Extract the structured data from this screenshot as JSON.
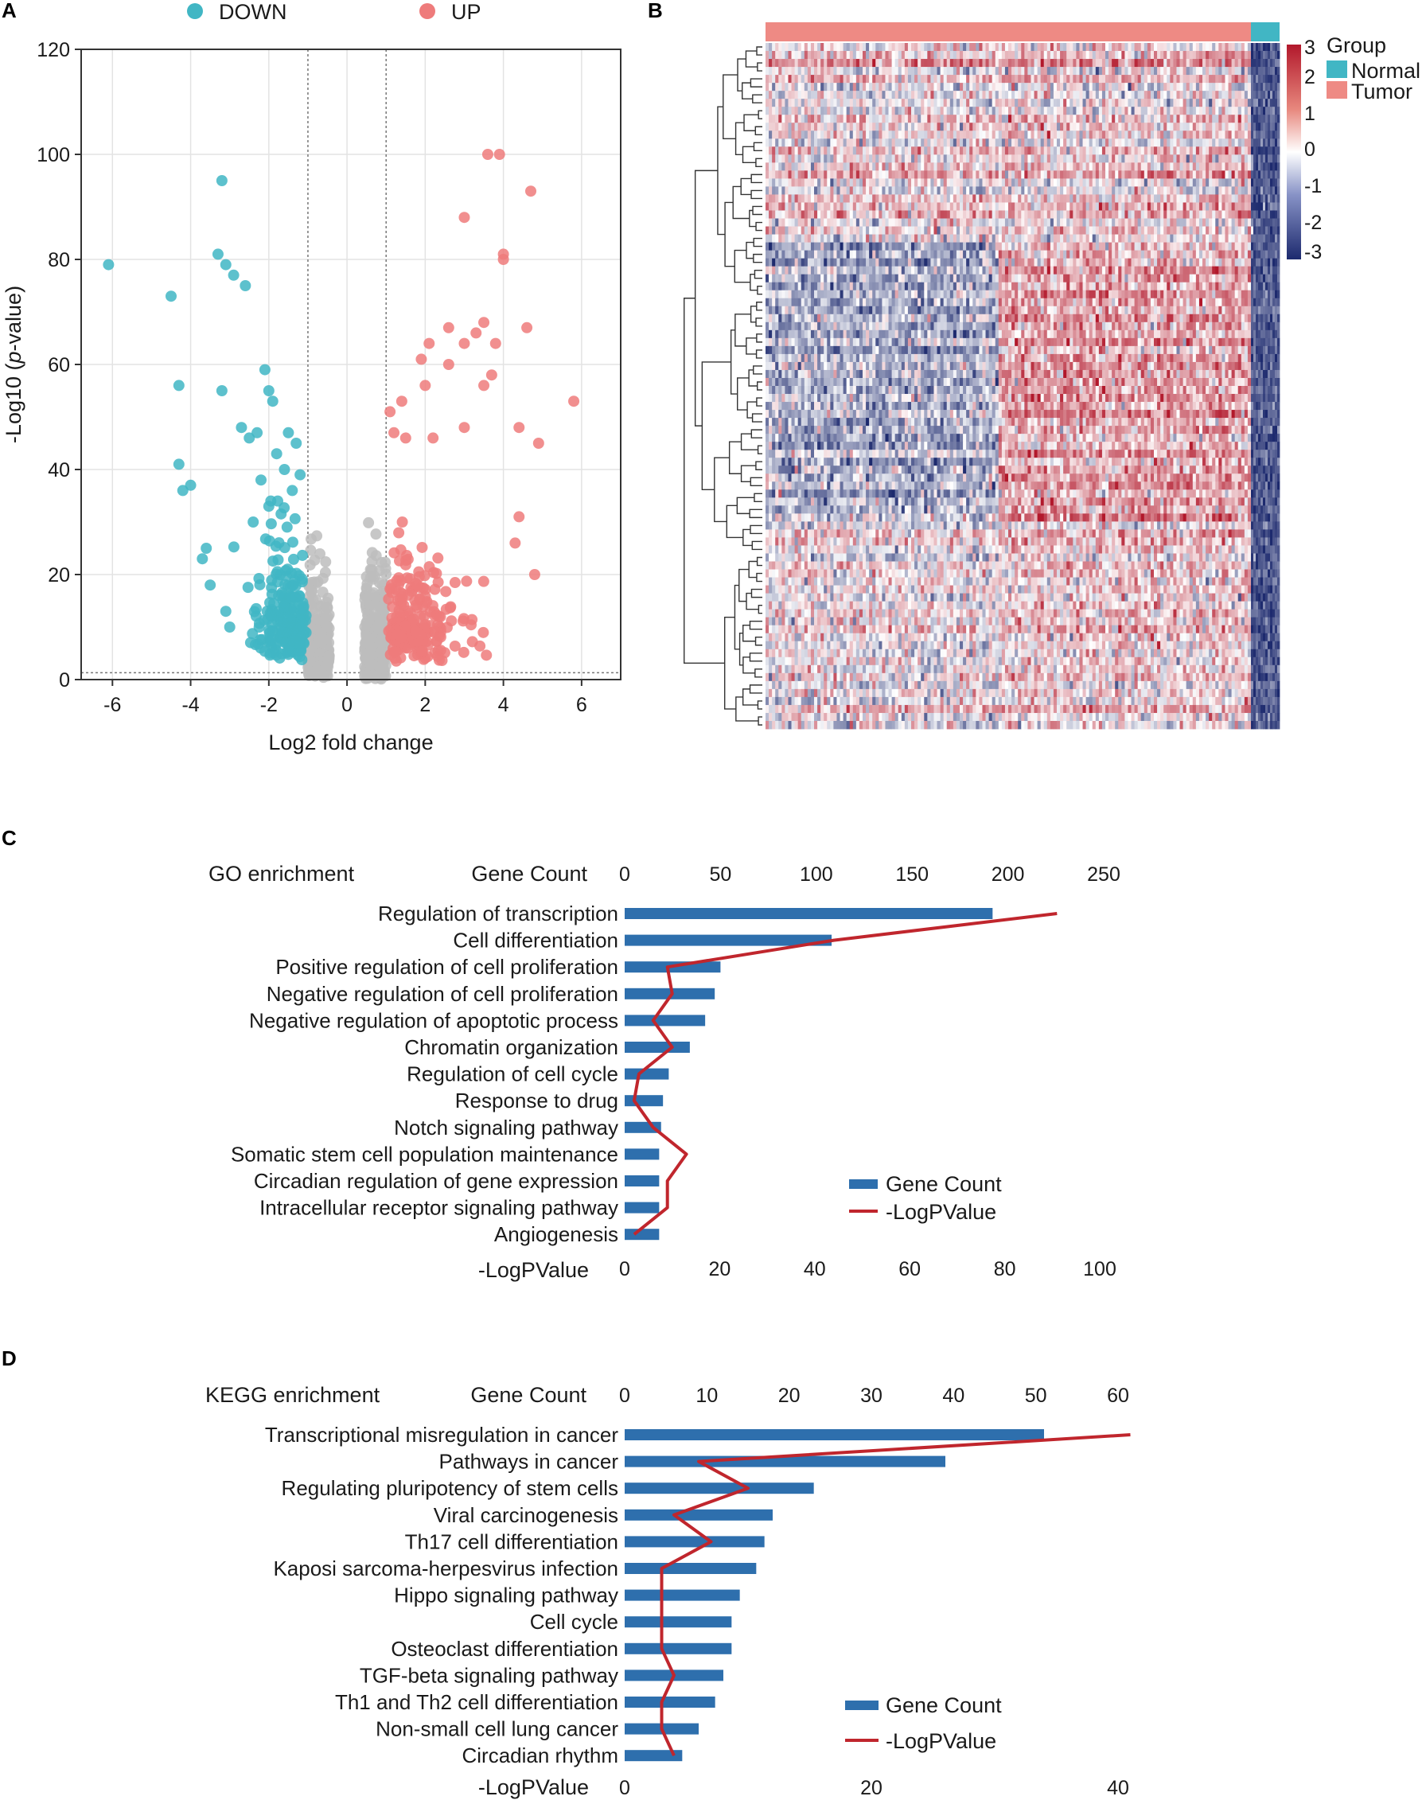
{
  "panels": {
    "a": "A",
    "b": "B",
    "c": "C",
    "d": "D"
  },
  "colors": {
    "down": "#41b6c4",
    "up": "#ee7b7b",
    "neutral": "#bdbdbd",
    "bar": "#2e6fad",
    "line": "#c0262d",
    "heat_low": "#1d2a6e",
    "heat_mid": "#ffffff",
    "heat_high": "#b2182b",
    "group_normal": "#41b6c4",
    "group_tumor": "#ee8a84"
  },
  "chart_data": [
    {
      "id": "volcano",
      "type": "scatter",
      "title": "",
      "xlabel": "Log2 fold change",
      "ylabel_prefix": "-Log10 (",
      "ylabel_italic": "p",
      "ylabel_suffix": "-value)",
      "xlim": [
        -6.8,
        7.0
      ],
      "ylim": [
        0,
        120
      ],
      "xticks": [
        -6,
        -4,
        -2,
        0,
        2,
        4,
        6
      ],
      "yticks": [
        0,
        20,
        40,
        60,
        80,
        100,
        120
      ],
      "thresholds": {
        "fc": [
          -1,
          1
        ],
        "p": 1.3
      },
      "legend": [
        {
          "name": "DOWN",
          "color_key": "down"
        },
        {
          "name": "UP",
          "color_key": "up"
        }
      ],
      "labeled_points": {
        "DOWN": [
          [
            -6.1,
            79
          ],
          [
            -4.5,
            73
          ],
          [
            -3.2,
            95
          ],
          [
            -3.3,
            81
          ],
          [
            -3.1,
            79
          ],
          [
            -2.9,
            77
          ],
          [
            -2.6,
            75
          ],
          [
            -4.3,
            56
          ],
          [
            -3.2,
            55
          ],
          [
            -2.1,
            59
          ],
          [
            -2.0,
            55
          ],
          [
            -1.9,
            53
          ],
          [
            -4.3,
            41
          ],
          [
            -4.0,
            37
          ],
          [
            -4.2,
            36
          ],
          [
            -3.6,
            25
          ],
          [
            -3.7,
            23
          ],
          [
            -3.5,
            18
          ],
          [
            -3.1,
            13
          ],
          [
            -3.0,
            10
          ],
          [
            -2.7,
            48
          ],
          [
            -2.5,
            46
          ],
          [
            -2.3,
            47
          ],
          [
            -1.8,
            43
          ],
          [
            -1.5,
            47
          ],
          [
            -1.3,
            45
          ],
          [
            -2.2,
            38
          ],
          [
            -1.6,
            40
          ],
          [
            -1.2,
            39
          ],
          [
            -2.4,
            30
          ],
          [
            -2.0,
            33
          ],
          [
            -1.4,
            36
          ]
        ],
        "UP": [
          [
            3.6,
            100
          ],
          [
            3.9,
            100
          ],
          [
            4.7,
            93
          ],
          [
            3.0,
            88
          ],
          [
            4.0,
            81
          ],
          [
            4.0,
            80
          ],
          [
            3.5,
            68
          ],
          [
            3.3,
            66
          ],
          [
            2.6,
            67
          ],
          [
            3.0,
            64
          ],
          [
            3.8,
            64
          ],
          [
            4.6,
            67
          ],
          [
            2.1,
            64
          ],
          [
            1.9,
            61
          ],
          [
            2.6,
            60
          ],
          [
            5.8,
            53
          ],
          [
            4.4,
            48
          ],
          [
            4.9,
            45
          ],
          [
            3.5,
            56
          ],
          [
            2.0,
            56
          ],
          [
            1.4,
            53
          ],
          [
            1.1,
            51
          ],
          [
            2.2,
            46
          ],
          [
            1.2,
            47
          ],
          [
            1.5,
            46
          ],
          [
            3.0,
            48
          ],
          [
            3.7,
            58
          ],
          [
            4.4,
            31
          ],
          [
            4.3,
            26
          ],
          [
            4.8,
            20
          ]
        ]
      }
    },
    {
      "id": "heatmap",
      "type": "heatmap",
      "colorbar_ticks": [
        "3",
        "2",
        "1",
        "0",
        "-1",
        "-2",
        "-3"
      ],
      "legend_title": "Group",
      "groups": [
        "Normal",
        "Tumor"
      ],
      "group_color_keys": [
        "group_normal",
        "group_tumor"
      ]
    },
    {
      "id": "go",
      "type": "bar",
      "title": "GO enrichment",
      "top_axis_label": "Gene Count",
      "bottom_axis_label": "-LogPValue",
      "top_ticks": [
        0,
        50,
        100,
        150,
        200,
        250
      ],
      "bottom_ticks": [
        0,
        20,
        40,
        60,
        80,
        100
      ],
      "categories": [
        "Regulation of transcription",
        "Cell differentiation",
        "Positive regulation of cell proliferation",
        "Negative regulation of cell proliferation",
        "Negative regulation of apoptotic process",
        "Chromatin organization",
        "Regulation of cell cycle",
        "Response to drug",
        "Notch signaling pathway",
        "Somatic stem cell population maintenance",
        "Circadian regulation of gene expression",
        "Intracellular receptor signaling pathway",
        "Angiogenesis"
      ],
      "series": [
        {
          "name": "Gene Count",
          "kind": "bar",
          "values": [
            192,
            108,
            50,
            47,
            42,
            34,
            23,
            20,
            19,
            18,
            18,
            18,
            18
          ]
        },
        {
          "name": "-LogPValue",
          "kind": "line",
          "values": [
            91,
            44,
            9,
            10,
            6,
            10,
            3,
            2,
            6,
            13,
            9,
            9,
            2
          ]
        }
      ]
    },
    {
      "id": "kegg",
      "type": "bar",
      "title": "KEGG enrichment",
      "top_axis_label": "Gene Count",
      "bottom_axis_label": "-LogPValue",
      "top_ticks": [
        0,
        10,
        20,
        30,
        40,
        50,
        60
      ],
      "bottom_ticks": [
        0,
        20,
        40
      ],
      "categories": [
        "Transcriptional misregulation in cancer",
        "Pathways in cancer",
        "Regulating pluripotency of stem cells",
        "Viral carcinogenesis",
        "Th17 cell differentiation",
        "Kaposi sarcoma-herpesvirus infection",
        "Hippo signaling pathway",
        "Cell cycle",
        "Osteoclast differentiation",
        "TGF-beta signaling pathway",
        "Th1 and Th2 cell differentiation",
        "Non-small cell lung cancer",
        "Circadian rhythm"
      ],
      "series": [
        {
          "name": "Gene Count",
          "kind": "bar",
          "values": [
            51,
            39,
            23,
            18,
            17,
            16,
            14,
            13,
            13,
            12,
            11,
            9,
            7
          ]
        },
        {
          "name": "-LogPValue",
          "kind": "line",
          "values": [
            41,
            6,
            10,
            4,
            7,
            3,
            3,
            3,
            3,
            4,
            3,
            3,
            4
          ]
        }
      ]
    }
  ]
}
